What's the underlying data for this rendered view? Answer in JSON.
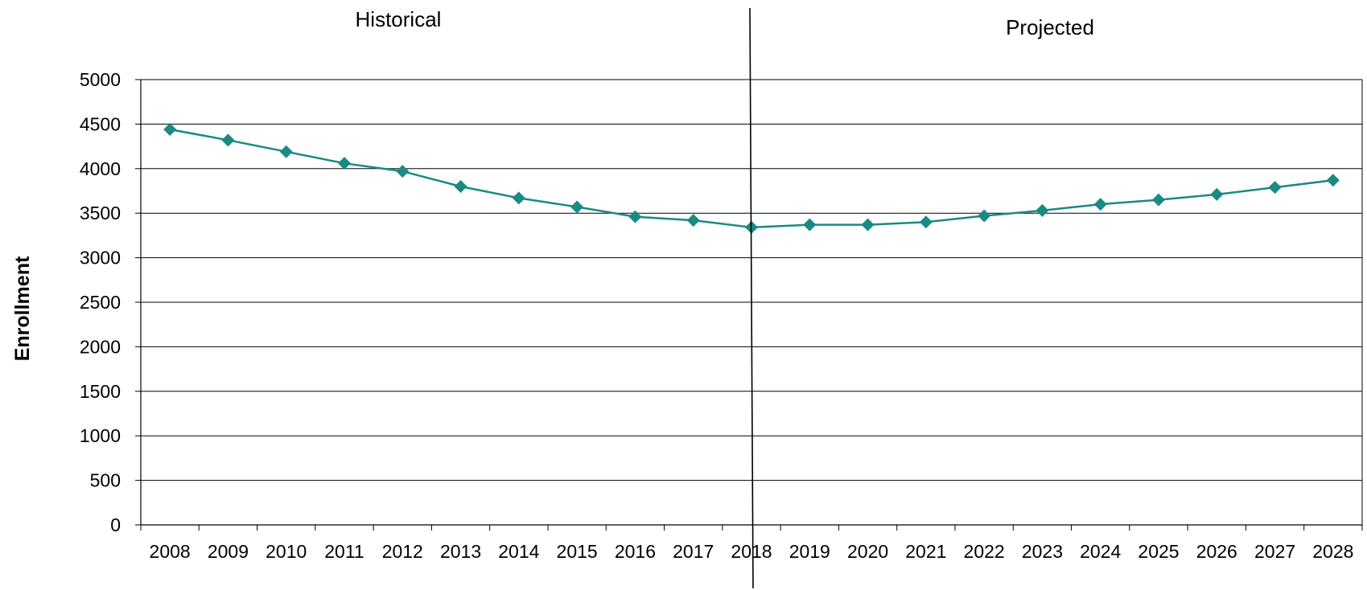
{
  "chart_data": {
    "type": "line",
    "ylabel": "Enrollment",
    "xlabel": "",
    "ylim": [
      0,
      5000
    ],
    "yticks": [
      0,
      500,
      1000,
      1500,
      2000,
      2500,
      3000,
      3500,
      4000,
      4500,
      5000
    ],
    "categories": [
      "2008",
      "2009",
      "2010",
      "2011",
      "2012",
      "2013",
      "2014",
      "2015",
      "2016",
      "2017",
      "2018",
      "2019",
      "2020",
      "2021",
      "2022",
      "2023",
      "2024",
      "2025",
      "2026",
      "2027",
      "2028"
    ],
    "series": [
      {
        "values": [
          4440,
          4320,
          4190,
          4060,
          3970,
          3800,
          3670,
          3570,
          3460,
          3420,
          3340,
          3370,
          3370,
          3400,
          3470,
          3530,
          3600,
          3650,
          3710,
          3790,
          3870
        ],
        "color": "#1a8a82",
        "marker": "diamond"
      }
    ],
    "sections": [
      {
        "label": "Historical"
      },
      {
        "label": "Projected"
      }
    ],
    "divider_after_category": "2018",
    "grid": true,
    "legend": "none"
  }
}
